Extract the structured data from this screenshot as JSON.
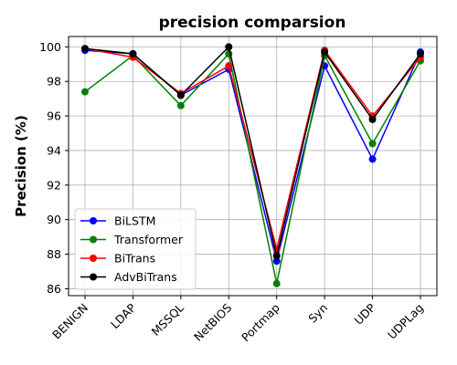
{
  "chart_data": {
    "type": "line",
    "title": "precision comparsion",
    "xlabel": "",
    "ylabel": "Precision (%)",
    "categories": [
      "BENIGN",
      "LDAP",
      "MSSQL",
      "NetBIOS",
      "Portmap",
      "Syn",
      "UDP",
      "UDPLag"
    ],
    "ylim": [
      85.6,
      100.6
    ],
    "yticks": [
      86,
      88,
      90,
      92,
      94,
      96,
      98,
      100
    ],
    "grid": true,
    "legend_position": "lower-left",
    "series": [
      {
        "name": "BiLSTM",
        "color": "#0000ff",
        "values": [
          99.8,
          99.6,
          97.2,
          98.7,
          87.6,
          98.9,
          93.5,
          99.7
        ]
      },
      {
        "name": "Transformer",
        "color": "#008000",
        "values": [
          97.4,
          99.5,
          96.6,
          99.6,
          86.3,
          99.5,
          94.4,
          99.2
        ]
      },
      {
        "name": "BiTrans",
        "color": "#ff0000",
        "values": [
          99.9,
          99.4,
          97.3,
          98.9,
          88.3,
          99.8,
          96.0,
          99.4
        ]
      },
      {
        "name": "AdvBiTrans",
        "color": "#000000",
        "values": [
          99.9,
          99.6,
          97.2,
          100.0,
          87.9,
          99.7,
          95.8,
          99.6
        ]
      }
    ]
  }
}
